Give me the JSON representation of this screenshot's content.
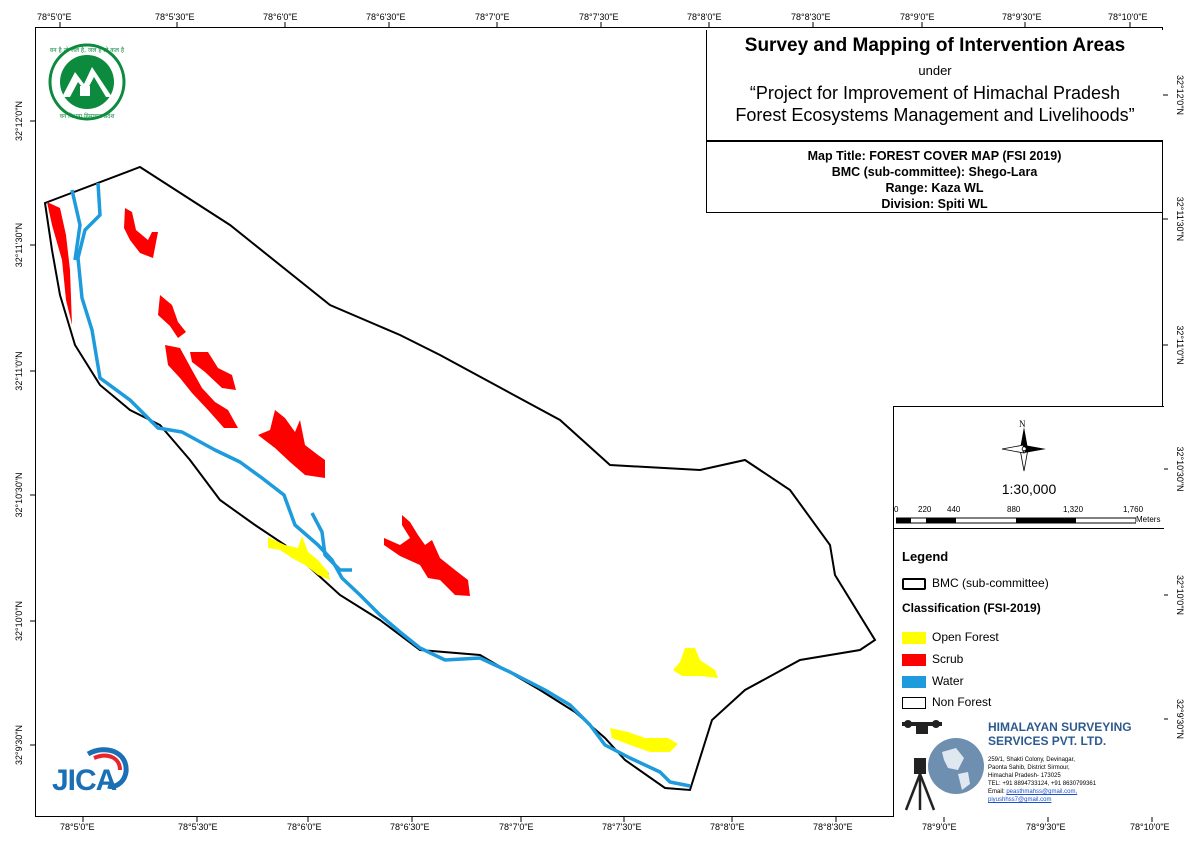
{
  "title": {
    "main": "Survey and Mapping of Intervention Areas",
    "under": "under",
    "project_line1": "“Project for Improvement of Himachal Pradesh",
    "project_line2": "Forest Ecosystems Management and Livelihoods”"
  },
  "info": {
    "map_title": "Map Title: FOREST COVER MAP (FSI 2019)",
    "bmc": "BMC (sub-committee): Shego-Lara",
    "range": "Range: Kaza WL",
    "division": "Division: Spiti WL"
  },
  "graticule": {
    "top_labels": [
      "78°5'0\"E",
      "78°5'30\"E",
      "78°6'0\"E",
      "78°6'30\"E",
      "78°7'0\"E",
      "78°7'30\"E",
      "78°8'0\"E",
      "78°8'30\"E",
      "78°9'0\"E",
      "78°9'30\"E",
      "78°10'0\"E"
    ],
    "bottom_labels": [
      "78°5'0\"E",
      "78°5'30\"E",
      "78°6'0\"E",
      "78°6'30\"E",
      "78°7'0\"E",
      "78°7'30\"E",
      "78°8'0\"E",
      "78°8'30\"E",
      "78°9'0\"E",
      "78°9'30\"E",
      "78°10'0\"E"
    ],
    "left_labels": [
      "32°12'0\"N",
      "32°11'30\"N",
      "32°11'0\"N",
      "32°10'30\"N",
      "32°10'0\"N",
      "32°9'30\"N"
    ],
    "right_labels": [
      "32°12'0\"N",
      "32°11'30\"N",
      "32°11'0\"N",
      "32°10'30\"N",
      "32°10'0\"N",
      "32°9'30\"N"
    ]
  },
  "north_arrow": {
    "label": "N"
  },
  "scale": {
    "ratio": "1:30,000",
    "ticks": [
      "0",
      "220",
      "440",
      "880",
      "1,320",
      "1,760"
    ],
    "unit": "Meters"
  },
  "legend": {
    "heading": "Legend",
    "bmc_label": "BMC (sub-committee)",
    "classification_heading": "Classification (FSI-2019)",
    "items": [
      {
        "label": "Open Forest",
        "color": "#ffff00"
      },
      {
        "label": "Scrub",
        "color": "#ff0000"
      },
      {
        "label": "Water",
        "color": "#1e9bdc"
      },
      {
        "label": "Non Forest",
        "color": "#ffffff"
      }
    ]
  },
  "company": {
    "name_line1": "HIMALAYAN SURVEYING",
    "name_line2": "SERVICES PVT. LTD.",
    "address1": "259/1, Shakti Colony, Devinagar,",
    "address2": "Paonta Sahib, District Sirmour,",
    "address3": "Himachal Pradesh- 173025",
    "phone": "TEL: +91 8894733124, +91 8630799361",
    "email_label": "Email:",
    "email1": "peasthmahss@gmail.com,",
    "email2": "piyushhss7@gmail.com"
  },
  "logos": {
    "forest_dept_text_top": "वन है तो जल है, जल है तो कल है",
    "forest_dept_text_bottom": "वन विभाग हिमाचल प्रदेश",
    "jica": "JICA"
  }
}
